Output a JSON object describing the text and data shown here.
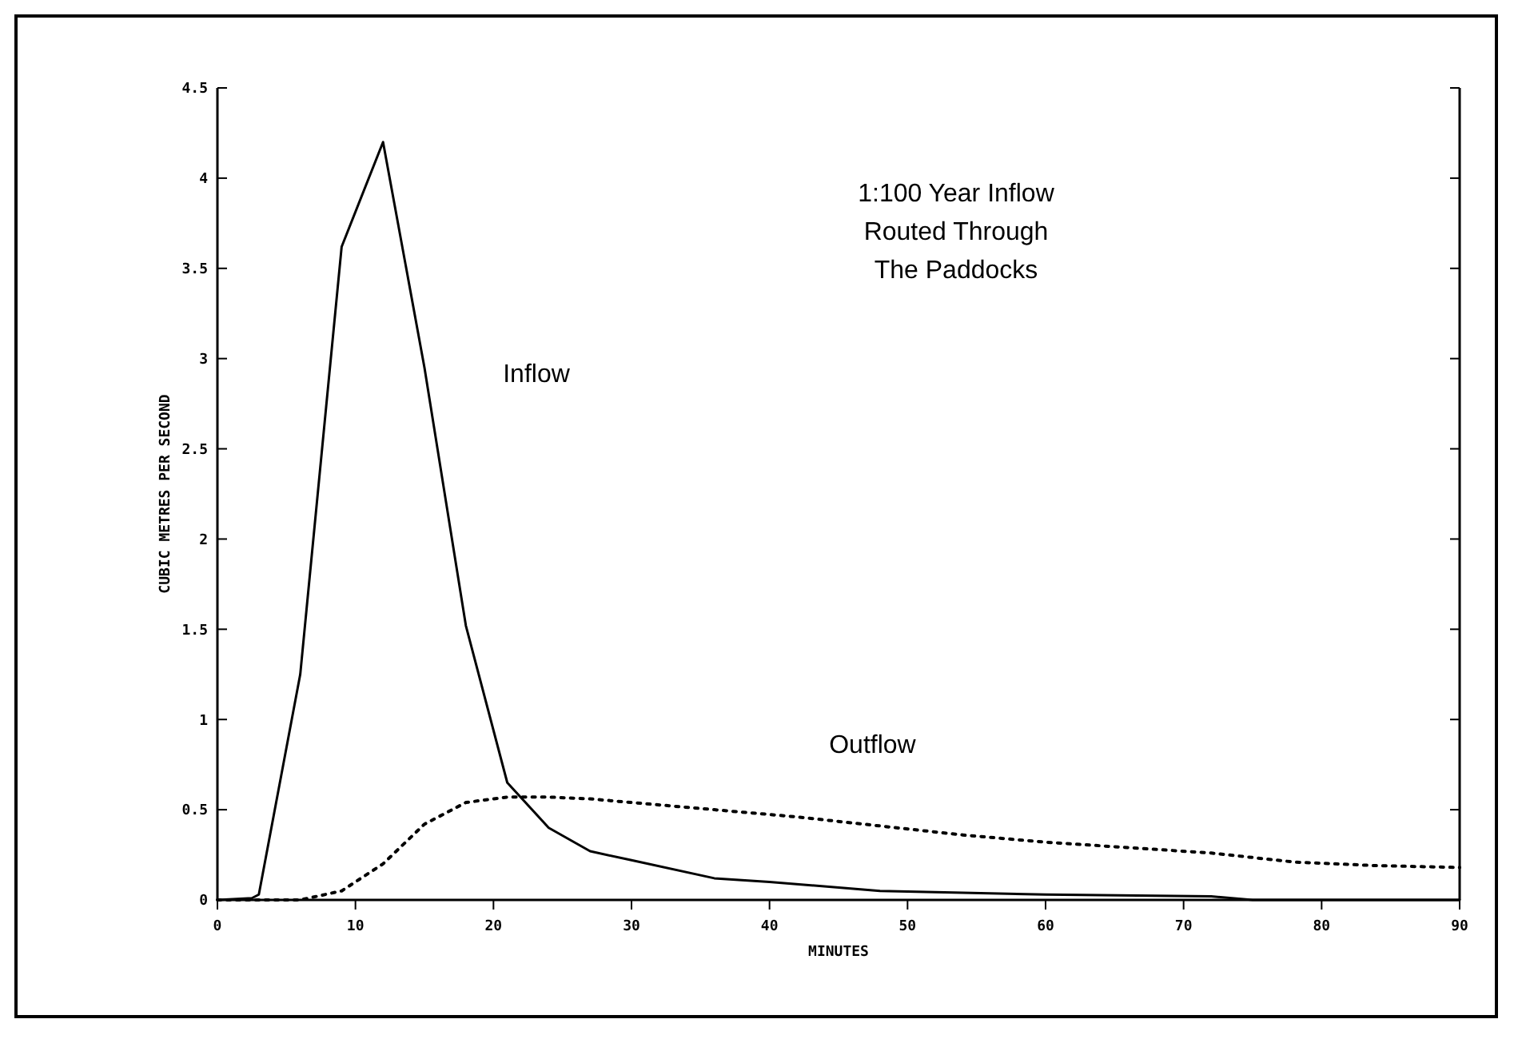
{
  "chart_data": {
    "type": "line",
    "title": "1:100 Year Inflow\nRouted Through\nThe Paddocks",
    "xlabel": "MINUTES",
    "ylabel": "CUBIC METRES PER SECOND",
    "xlim": [
      0,
      90
    ],
    "xticks": [
      0,
      10,
      20,
      30,
      40,
      50,
      60,
      70,
      80,
      90
    ],
    "ylim": [
      0,
      4.5
    ],
    "yticks": [
      0,
      0.5,
      1,
      1.5,
      2,
      2.5,
      3,
      3.5,
      4,
      4.5
    ],
    "grid": false,
    "series": [
      {
        "name": "Inflow",
        "color": "#000000",
        "line_style": "solid",
        "x": [
          0,
          2.5,
          3,
          6,
          9,
          12,
          15,
          18,
          21,
          24,
          27,
          30,
          36,
          40,
          48,
          54,
          60,
          72,
          75,
          90
        ],
        "values": [
          0,
          0.01,
          0.03,
          1.25,
          3.62,
          4.2,
          2.95,
          1.52,
          0.65,
          0.4,
          0.27,
          0.22,
          0.12,
          0.1,
          0.05,
          0.04,
          0.03,
          0.02,
          0,
          0
        ]
      },
      {
        "name": "Outflow",
        "color": "#000000",
        "line_style": "dotted",
        "x": [
          0,
          6,
          9,
          12,
          15,
          18,
          21,
          24,
          27,
          30,
          36,
          42,
          48,
          54,
          60,
          66,
          72,
          78,
          84,
          90
        ],
        "values": [
          0,
          0,
          0.05,
          0.2,
          0.42,
          0.54,
          0.57,
          0.57,
          0.56,
          0.54,
          0.5,
          0.46,
          0.41,
          0.36,
          0.32,
          0.29,
          0.26,
          0.21,
          0.19,
          0.18
        ]
      }
    ]
  }
}
